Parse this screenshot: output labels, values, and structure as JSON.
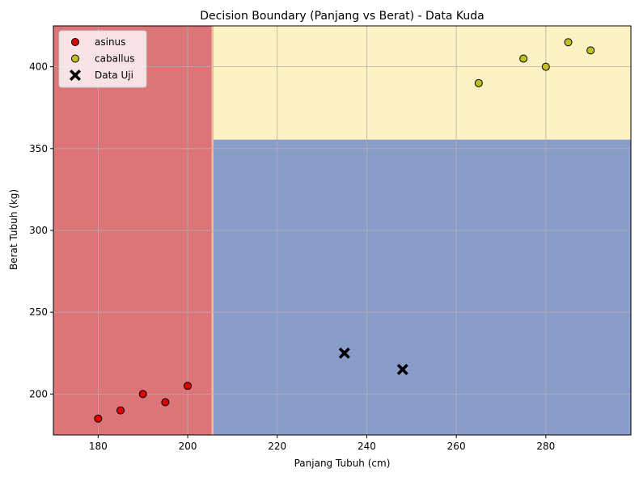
{
  "chart_data": {
    "type": "scatter",
    "title": "Decision Boundary (Panjang vs Berat) - Data Kuda",
    "xlabel": "Panjang Tubuh (cm)",
    "ylabel": "Berat Tubuh (kg)",
    "xlim": [
      170,
      299
    ],
    "ylim": [
      175,
      425
    ],
    "xticks": [
      180,
      200,
      220,
      240,
      260,
      280
    ],
    "yticks": [
      200,
      250,
      300,
      350,
      400
    ],
    "grid": true,
    "legend_position": "top-left",
    "regions": [
      {
        "class": "asinus",
        "color": "#dc7478",
        "x_range": [
          170,
          205.5
        ],
        "y_range": [
          175,
          425
        ]
      },
      {
        "class": "caballus",
        "color": "#fdf2c4",
        "x_range": [
          205.5,
          299
        ],
        "y_range": [
          355.5,
          425
        ]
      },
      {
        "class": "test",
        "color": "#8a9cc8",
        "x_range": [
          205.5,
          299
        ],
        "y_range": [
          175,
          355.5
        ]
      }
    ],
    "series": [
      {
        "name": "asinus",
        "marker": "circle",
        "color": "#e00000",
        "points": [
          [
            180,
            185
          ],
          [
            185,
            190
          ],
          [
            190,
            200
          ],
          [
            195,
            195
          ],
          [
            200,
            205
          ]
        ]
      },
      {
        "name": "caballus",
        "marker": "circle",
        "color": "#c0c020",
        "points": [
          [
            265,
            390
          ],
          [
            275,
            405
          ],
          [
            280,
            400
          ],
          [
            285,
            415
          ],
          [
            290,
            410
          ]
        ]
      },
      {
        "name": "Data Uji",
        "marker": "x",
        "color": "#000000",
        "points": [
          [
            235,
            225
          ],
          [
            248,
            215
          ]
        ]
      }
    ]
  }
}
